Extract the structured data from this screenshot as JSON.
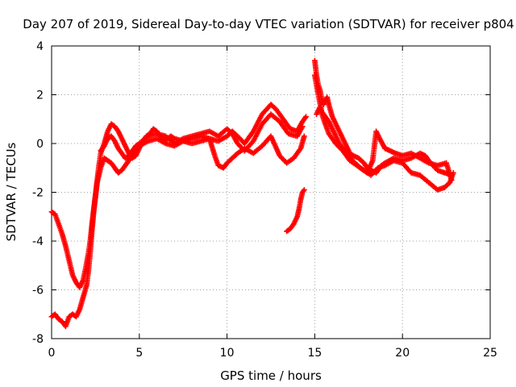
{
  "chart_data": {
    "type": "scatter",
    "title": "Day 207 of 2019, Sidereal Day-to-day VTEC variation (SDTVAR) for receiver p804",
    "xlabel": "GPS time / hours",
    "ylabel": "SDTVAR / TECUs",
    "xlim": [
      0,
      25
    ],
    "ylim": [
      -8,
      4
    ],
    "xticks": [
      0,
      5,
      10,
      15,
      20,
      25
    ],
    "yticks": [
      -8,
      -6,
      -4,
      -2,
      0,
      2,
      4
    ],
    "grid": true,
    "marker": "plus",
    "color": "#ff0000",
    "series": [
      {
        "name": "track-a",
        "points": [
          [
            0.0,
            -2.8
          ],
          [
            0.2,
            -2.9
          ],
          [
            0.4,
            -3.3
          ],
          [
            0.6,
            -3.7
          ],
          [
            0.8,
            -4.2
          ],
          [
            1.0,
            -4.8
          ],
          [
            1.2,
            -5.4
          ],
          [
            1.4,
            -5.7
          ],
          [
            1.6,
            -5.9
          ],
          [
            1.8,
            -5.6
          ],
          [
            2.0,
            -4.9
          ],
          [
            2.1,
            -4.5
          ],
          [
            2.2,
            -4.0
          ],
          [
            2.3,
            -3.3
          ],
          [
            2.4,
            -2.7
          ],
          [
            2.5,
            -2.1
          ],
          [
            2.6,
            -1.5
          ],
          [
            2.7,
            -0.9
          ],
          [
            2.8,
            -0.4
          ],
          [
            3.0,
            0.0
          ],
          [
            3.2,
            0.5
          ],
          [
            3.4,
            0.8
          ],
          [
            3.6,
            0.7
          ],
          [
            3.8,
            0.5
          ],
          [
            4.0,
            0.2
          ],
          [
            4.2,
            -0.1
          ],
          [
            4.4,
            -0.4
          ],
          [
            4.6,
            -0.6
          ],
          [
            4.8,
            -0.5
          ],
          [
            5.0,
            -0.2
          ],
          [
            5.2,
            0.1
          ],
          [
            5.4,
            0.3
          ],
          [
            5.6,
            0.4
          ],
          [
            5.8,
            0.6
          ],
          [
            6.0,
            0.5
          ],
          [
            6.2,
            0.3
          ],
          [
            6.4,
            0.1
          ],
          [
            6.6,
            0.2
          ],
          [
            6.8,
            0.3
          ],
          [
            7.0,
            0.2
          ],
          [
            7.5,
            0.1
          ],
          [
            8.0,
            0.2
          ],
          [
            8.5,
            0.3
          ],
          [
            9.0,
            0.2
          ],
          [
            9.5,
            0.1
          ],
          [
            10.0,
            0.3
          ],
          [
            10.3,
            0.5
          ],
          [
            10.6,
            0.3
          ],
          [
            11.0,
            0.0
          ],
          [
            11.5,
            0.5
          ],
          [
            12.0,
            1.2
          ],
          [
            12.5,
            1.6
          ],
          [
            12.8,
            1.4
          ],
          [
            13.2,
            1.0
          ],
          [
            13.6,
            0.6
          ],
          [
            14.0,
            0.5
          ],
          [
            14.3,
            0.9
          ],
          [
            14.5,
            1.1
          ]
        ]
      },
      {
        "name": "track-b",
        "points": [
          [
            0.0,
            -7.1
          ],
          [
            0.2,
            -7.0
          ],
          [
            0.4,
            -7.2
          ],
          [
            0.6,
            -7.3
          ],
          [
            0.8,
            -7.5
          ],
          [
            1.0,
            -7.1
          ],
          [
            1.2,
            -7.0
          ],
          [
            1.4,
            -7.1
          ],
          [
            1.6,
            -6.8
          ],
          [
            1.8,
            -6.3
          ],
          [
            2.0,
            -5.8
          ],
          [
            2.1,
            -5.2
          ],
          [
            2.2,
            -4.5
          ],
          [
            2.3,
            -3.6
          ],
          [
            2.4,
            -2.8
          ],
          [
            2.5,
            -2.2
          ],
          [
            2.6,
            -1.6
          ],
          [
            2.8,
            -1.0
          ],
          [
            3.0,
            -0.6
          ],
          [
            3.2,
            -0.7
          ],
          [
            3.4,
            -0.8
          ],
          [
            3.6,
            -1.0
          ],
          [
            3.8,
            -1.2
          ],
          [
            4.0,
            -1.1
          ],
          [
            4.2,
            -0.9
          ],
          [
            4.4,
            -0.7
          ],
          [
            4.6,
            -0.5
          ],
          [
            4.8,
            -0.3
          ],
          [
            5.0,
            -0.1
          ],
          [
            5.5,
            0.1
          ],
          [
            6.0,
            0.2
          ],
          [
            6.5,
            0.0
          ],
          [
            7.0,
            -0.1
          ],
          [
            7.5,
            0.1
          ],
          [
            8.0,
            0.0
          ],
          [
            8.5,
            0.1
          ],
          [
            9.0,
            0.2
          ],
          [
            9.3,
            -0.5
          ],
          [
            9.5,
            -0.9
          ],
          [
            9.8,
            -1.0
          ],
          [
            10.0,
            -0.8
          ],
          [
            10.3,
            -0.6
          ],
          [
            10.6,
            -0.4
          ],
          [
            11.0,
            -0.2
          ],
          [
            11.5,
            -0.4
          ],
          [
            12.0,
            -0.1
          ],
          [
            12.5,
            0.3
          ],
          [
            13.0,
            -0.5
          ],
          [
            13.4,
            -0.8
          ],
          [
            13.8,
            -0.6
          ],
          [
            14.2,
            -0.2
          ],
          [
            14.4,
            0.3
          ]
        ]
      },
      {
        "name": "track-c",
        "points": [
          [
            2.8,
            -0.3
          ],
          [
            3.0,
            -0.1
          ],
          [
            3.2,
            0.2
          ],
          [
            3.4,
            0.3
          ],
          [
            3.6,
            0.1
          ],
          [
            3.8,
            -0.2
          ],
          [
            4.0,
            -0.4
          ],
          [
            4.2,
            -0.6
          ],
          [
            4.4,
            -0.5
          ],
          [
            4.6,
            -0.3
          ],
          [
            4.8,
            -0.1
          ],
          [
            5.0,
            0.0
          ],
          [
            5.5,
            0.3
          ],
          [
            6.0,
            0.4
          ],
          [
            6.5,
            0.3
          ],
          [
            7.0,
            0.0
          ],
          [
            7.5,
            0.2
          ],
          [
            8.0,
            0.3
          ],
          [
            8.5,
            0.4
          ],
          [
            9.0,
            0.5
          ],
          [
            9.5,
            0.3
          ],
          [
            10.0,
            0.6
          ],
          [
            10.3,
            0.4
          ],
          [
            10.6,
            0.0
          ],
          [
            11.0,
            -0.3
          ],
          [
            11.5,
            0.1
          ],
          [
            12.0,
            0.8
          ],
          [
            12.5,
            1.2
          ],
          [
            13.0,
            0.9
          ],
          [
            13.5,
            0.4
          ],
          [
            14.0,
            0.3
          ],
          [
            14.3,
            0.7
          ]
        ]
      },
      {
        "name": "track-d",
        "points": [
          [
            13.4,
            -3.6
          ],
          [
            13.6,
            -3.5
          ],
          [
            13.8,
            -3.3
          ],
          [
            14.0,
            -3.0
          ],
          [
            14.1,
            -2.7
          ],
          [
            14.2,
            -2.3
          ],
          [
            14.3,
            -2.0
          ],
          [
            14.4,
            -1.9
          ]
        ]
      },
      {
        "name": "track-e",
        "points": [
          [
            15.0,
            3.4
          ],
          [
            15.1,
            2.8
          ],
          [
            15.2,
            2.4
          ],
          [
            15.3,
            2.2
          ],
          [
            15.4,
            1.8
          ],
          [
            15.5,
            1.6
          ],
          [
            15.7,
            1.9
          ],
          [
            15.8,
            1.6
          ],
          [
            16.0,
            1.1
          ],
          [
            16.2,
            0.8
          ],
          [
            16.4,
            0.5
          ],
          [
            16.6,
            0.2
          ],
          [
            16.8,
            -0.1
          ],
          [
            17.0,
            -0.4
          ],
          [
            17.2,
            -0.5
          ],
          [
            17.5,
            -0.6
          ],
          [
            17.8,
            -0.8
          ],
          [
            18.0,
            -1.0
          ],
          [
            18.2,
            -1.1
          ],
          [
            18.5,
            -1.2
          ],
          [
            18.8,
            -0.9
          ],
          [
            19.0,
            -0.8
          ],
          [
            19.5,
            -0.6
          ],
          [
            20.0,
            -0.7
          ],
          [
            20.5,
            -0.6
          ],
          [
            21.0,
            -0.4
          ],
          [
            21.3,
            -0.5
          ],
          [
            21.6,
            -0.8
          ],
          [
            22.0,
            -1.1
          ],
          [
            22.4,
            -1.2
          ],
          [
            22.8,
            -1.3
          ]
        ]
      },
      {
        "name": "track-f",
        "points": [
          [
            15.0,
            2.8
          ],
          [
            15.2,
            2.0
          ],
          [
            15.4,
            1.3
          ],
          [
            15.6,
            1.1
          ],
          [
            15.8,
            0.9
          ],
          [
            16.0,
            0.6
          ],
          [
            16.2,
            0.3
          ],
          [
            16.4,
            0.0
          ],
          [
            16.6,
            -0.2
          ],
          [
            16.8,
            -0.4
          ],
          [
            17.0,
            -0.6
          ],
          [
            17.3,
            -0.8
          ],
          [
            17.6,
            -1.0
          ],
          [
            18.0,
            -1.2
          ],
          [
            18.3,
            -0.7
          ],
          [
            18.5,
            0.5
          ],
          [
            18.7,
            0.2
          ],
          [
            19.0,
            -0.2
          ],
          [
            19.3,
            -0.3
          ],
          [
            19.6,
            -0.4
          ],
          [
            20.0,
            -0.5
          ],
          [
            20.5,
            -0.4
          ],
          [
            21.0,
            -0.6
          ],
          [
            21.5,
            -0.8
          ],
          [
            22.0,
            -0.9
          ],
          [
            22.5,
            -0.8
          ],
          [
            22.8,
            -1.5
          ]
        ]
      },
      {
        "name": "track-g",
        "points": [
          [
            15.1,
            1.2
          ],
          [
            15.3,
            1.5
          ],
          [
            15.5,
            1.0
          ],
          [
            15.8,
            0.4
          ],
          [
            16.2,
            0.0
          ],
          [
            16.6,
            -0.3
          ],
          [
            17.0,
            -0.7
          ],
          [
            17.4,
            -0.9
          ],
          [
            17.8,
            -1.1
          ],
          [
            18.2,
            -1.3
          ],
          [
            18.6,
            -1.0
          ],
          [
            19.0,
            -0.9
          ],
          [
            19.5,
            -0.7
          ],
          [
            20.0,
            -0.8
          ],
          [
            20.5,
            -1.2
          ],
          [
            21.0,
            -1.3
          ],
          [
            21.5,
            -1.6
          ],
          [
            22.0,
            -1.9
          ],
          [
            22.4,
            -1.8
          ],
          [
            22.7,
            -1.6
          ],
          [
            22.9,
            -1.2
          ]
        ]
      }
    ]
  }
}
